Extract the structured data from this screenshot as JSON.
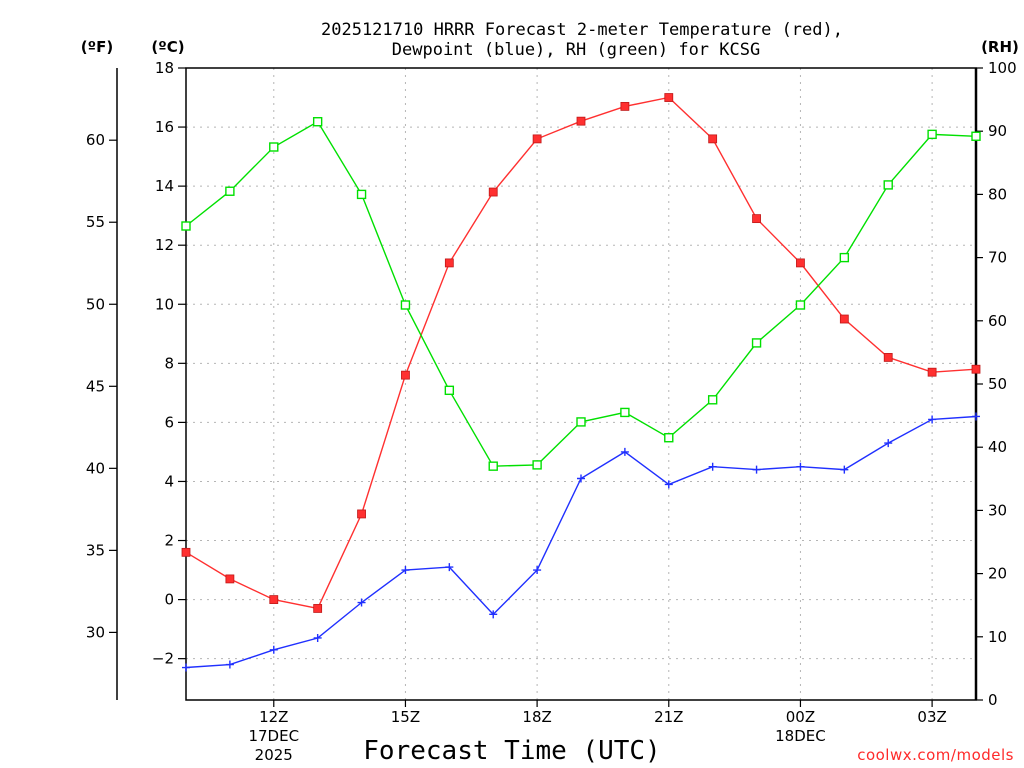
{
  "chart_data": {
    "type": "line",
    "title_lines": [
      "2025121710 HRRR Forecast 2-meter Temperature (red),",
      "Dewpoint (blue), RH (green) for KCSG"
    ],
    "xlabel": "Forecast Time (UTC)",
    "x": [
      10,
      11,
      12,
      13,
      14,
      15,
      16,
      17,
      18,
      19,
      20,
      21,
      22,
      23,
      24,
      25,
      26,
      27,
      28
    ],
    "xlim": [
      10,
      28
    ],
    "x_ticks": [
      {
        "x": 12,
        "label": "12Z",
        "sub1": "17DEC",
        "sub2": "2025"
      },
      {
        "x": 15,
        "label": "15Z"
      },
      {
        "x": 18,
        "label": "18Z"
      },
      {
        "x": 21,
        "label": "21Z"
      },
      {
        "x": 24,
        "label": "00Z",
        "sub1": "18DEC"
      },
      {
        "x": 27,
        "label": "03Z"
      }
    ],
    "left_axis_c": {
      "unit": "(ºC)",
      "ylim": [
        -3.4,
        18
      ],
      "ticks": [
        -2,
        0,
        2,
        4,
        6,
        8,
        10,
        12,
        14,
        16,
        18
      ]
    },
    "left_axis_f": {
      "unit": "(ºF)",
      "ticks": [
        30,
        35,
        40,
        45,
        50,
        55,
        60
      ]
    },
    "right_axis_rh": {
      "unit": "(RH)",
      "ylim": [
        0,
        100
      ],
      "ticks": [
        0,
        10,
        20,
        30,
        40,
        50,
        60,
        70,
        80,
        90,
        100
      ]
    },
    "series": [
      {
        "name": "Temperature",
        "axis": "c",
        "color": "#ff3030",
        "marker": "filled-square",
        "values": [
          1.6,
          0.7,
          0.0,
          -0.3,
          2.9,
          7.6,
          11.4,
          13.8,
          15.6,
          16.2,
          16.7,
          17.0,
          15.6,
          12.9,
          11.4,
          9.5,
          8.2,
          7.7,
          7.8
        ]
      },
      {
        "name": "Dewpoint",
        "axis": "c",
        "color": "#2030ff",
        "marker": "plus",
        "values": [
          -2.3,
          -2.2,
          -1.7,
          -1.3,
          -0.1,
          1.0,
          1.1,
          -0.5,
          1.0,
          4.1,
          5.0,
          3.9,
          4.5,
          4.4,
          4.5,
          4.4,
          5.3,
          6.1,
          6.2
        ]
      },
      {
        "name": "RH",
        "axis": "rh",
        "color": "#00e000",
        "marker": "open-square",
        "values": [
          75,
          80.5,
          87.5,
          91.5,
          80,
          62.5,
          49,
          37,
          37.2,
          44,
          45.5,
          41.5,
          47.5,
          56.5,
          62.5,
          70,
          81.5,
          89.5,
          89.2
        ]
      }
    ],
    "credit": "coolwx.com/models"
  }
}
